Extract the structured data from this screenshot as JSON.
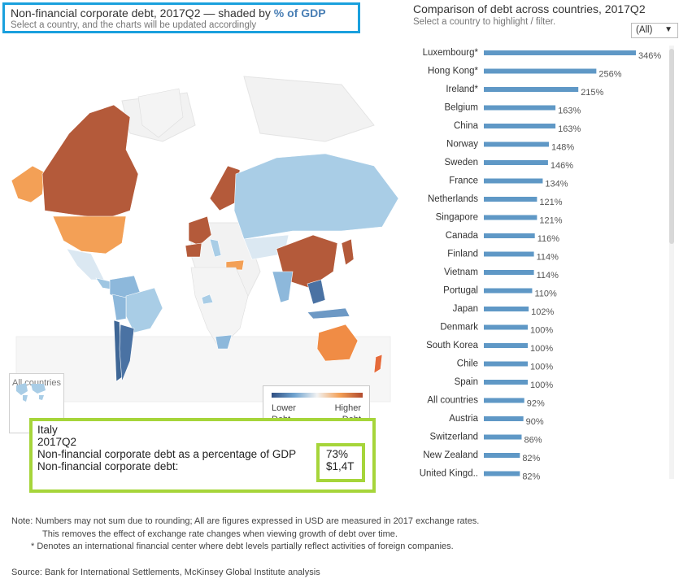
{
  "header": {
    "title_prefix": "Non-financial corporate debt, 2017Q2 — shaded by ",
    "title_emph": "% of GDP",
    "subtitle": "Select a country, and the charts will be updated accordingly"
  },
  "map": {
    "all_countries_label": "All countries",
    "legend": {
      "low_line1": "Lower",
      "low_line2": "Debt",
      "high_line1": "Higher",
      "high_line2": "Debt"
    }
  },
  "tooltip": {
    "country": "Italy",
    "period": "2017Q2",
    "pct_label": "Non-financial corporate debt as a percentage of GDP",
    "pct_value": "73%",
    "debt_label": "Non-financial corporate debt:",
    "debt_value": "$1,4T"
  },
  "right_panel": {
    "title": "Comparison of debt across countries, 2017Q2",
    "subtitle": "Select a country to highlight / filter.",
    "filter_value": "(All)"
  },
  "colors": {
    "bar": "#5f98c6",
    "high": "#b14a2e",
    "mid_high": "#f3a056",
    "low": "#2f4f82",
    "mid_low": "#a7cfe6"
  },
  "chart_data": {
    "type": "bar",
    "orientation": "horizontal",
    "title": "Comparison of debt across countries, 2017Q2",
    "categories": [
      "Luxembourg*",
      "Hong Kong*",
      "Ireland*",
      "Belgium",
      "China",
      "Norway",
      "Sweden",
      "France",
      "Netherlands",
      "Singapore",
      "Canada",
      "Finland",
      "Vietnam",
      "Portugal",
      "Japan",
      "Denmark",
      "South Korea",
      "Chile",
      "Spain",
      "All countries",
      "Austria",
      "Switzerland",
      "New Zealand",
      "United Kingd.."
    ],
    "values": [
      346,
      256,
      215,
      163,
      163,
      148,
      146,
      134,
      121,
      121,
      116,
      114,
      114,
      110,
      102,
      100,
      100,
      100,
      100,
      92,
      90,
      86,
      82,
      82
    ],
    "value_labels": [
      "346%",
      "256%",
      "215%",
      "163%",
      "163%",
      "148%",
      "146%",
      "134%",
      "121%",
      "121%",
      "116%",
      "114%",
      "114%",
      "110%",
      "102%",
      "100%",
      "100%",
      "100%",
      "100%",
      "92%",
      "90%",
      "86%",
      "82%",
      "82%"
    ],
    "unit": "% of GDP",
    "xlim": [
      0,
      346
    ]
  },
  "notes": {
    "line1": "Note: Numbers may not sum due to rounding;   All are figures expressed in USD are measured in 2017 exchange rates.",
    "line2": "This removes the effect of exchange rate changes when viewing growth of debt over time.",
    "line3": "* Denotes an international financial center where debt levels partially reflect activities of foreign companies.",
    "source": "Source: Bank for International Settlements, McKinsey Global Institute analysis"
  }
}
